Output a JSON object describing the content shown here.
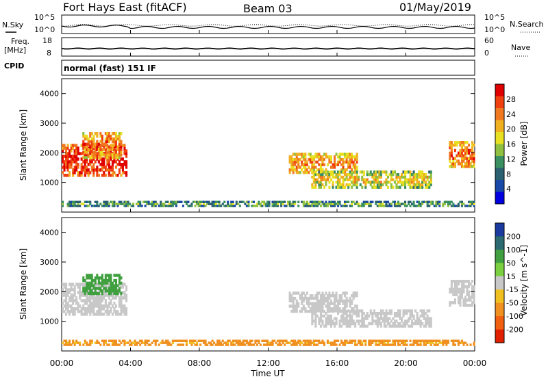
{
  "header": {
    "radar": "Fort Hays East (fitACF)",
    "beam": "Beam 03",
    "date": "01/May/2019"
  },
  "noise_panel": {
    "left_label": "N.Sky",
    "right_label": "N.Search",
    "ticks": [
      "10^5",
      "10^0"
    ]
  },
  "freq_panel": {
    "left_label": "Freq.",
    "left_unit": "[MHz]",
    "left_ticks": [
      "18",
      "8"
    ],
    "right_label": "Nave",
    "right_ticks": [
      "60",
      "0"
    ]
  },
  "cpid": {
    "label": "CPID",
    "text": "normal (fast) 151 IF"
  },
  "chart_data": [
    {
      "type": "heatmap",
      "name": "power",
      "ylabel": "Slant Range [km]",
      "yticks": [
        "4000",
        "3000",
        "2000",
        "1000"
      ],
      "xticks": [
        "00:00",
        "04:00",
        "08:00",
        "12:00",
        "16:00",
        "20:00",
        "00:00"
      ],
      "xlabel": "Time UT",
      "colorbar": {
        "label": "Power [dB]",
        "ticks": [
          "28",
          "24",
          "20",
          "16",
          "12",
          "8",
          "4"
        ],
        "colors": [
          "#e00000",
          "#f04010",
          "#f07820",
          "#f0b020",
          "#e8e020",
          "#90c040",
          "#3a9060",
          "#2a6070",
          "#1848a8",
          "#0000e0"
        ]
      },
      "bands": [
        {
          "t0": 0,
          "t1": 3.8,
          "r0": 1200,
          "r1": 2300,
          "level": 22
        },
        {
          "t0": 1.2,
          "t1": 3.5,
          "r0": 1800,
          "r1": 2700,
          "level": 18
        },
        {
          "t0": 13.2,
          "t1": 17.2,
          "r0": 1300,
          "r1": 2000,
          "level": 16
        },
        {
          "t0": 14.5,
          "t1": 21.5,
          "r0": 800,
          "r1": 1400,
          "level": 12
        },
        {
          "t0": 22.5,
          "t1": 24,
          "r0": 1500,
          "r1": 2400,
          "level": 18
        },
        {
          "t0": 0,
          "t1": 24,
          "r0": 180,
          "r1": 380,
          "level": 6
        }
      ]
    },
    {
      "type": "heatmap",
      "name": "velocity",
      "ylabel": "Slant Range [km]",
      "yticks": [
        "4000",
        "3000",
        "2000",
        "1000"
      ],
      "xticks": [
        "00:00",
        "04:00",
        "08:00",
        "12:00",
        "16:00",
        "20:00",
        "00:00"
      ],
      "xlabel": "Time UT",
      "colorbar": {
        "label": "Velocity [m s^-1]",
        "ticks": [
          "200",
          "100",
          "50",
          "15",
          "-15",
          "-50",
          "-100",
          "-200"
        ],
        "colors": [
          "#1a3aa0",
          "#2a6a70",
          "#40a040",
          "#7ad040",
          "#c8c8c8",
          "#f0c020",
          "#f09020",
          "#f06010",
          "#e02000"
        ]
      },
      "bands": [
        {
          "t0": 0,
          "t1": 3.8,
          "r0": 1200,
          "r1": 2300,
          "level": 0
        },
        {
          "t0": 1.2,
          "t1": 3.5,
          "r0": 1900,
          "r1": 2600,
          "level": 60
        },
        {
          "t0": 13.2,
          "t1": 17.2,
          "r0": 1300,
          "r1": 2000,
          "level": 0
        },
        {
          "t0": 14.5,
          "t1": 21.5,
          "r0": 800,
          "r1": 1400,
          "level": 0
        },
        {
          "t0": 22.5,
          "t1": 24,
          "r0": 1500,
          "r1": 2400,
          "level": 0
        },
        {
          "t0": 0,
          "t1": 24,
          "r0": 180,
          "r1": 380,
          "level": -40
        }
      ]
    }
  ]
}
